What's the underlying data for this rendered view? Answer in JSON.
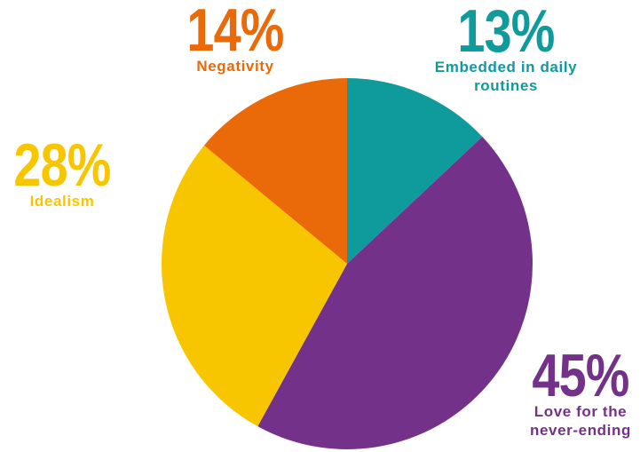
{
  "chart_data": {
    "type": "pie",
    "title": "",
    "slices": [
      {
        "label": "Embedded in daily routines",
        "label_lines": [
          "Embedded in daily",
          "routines"
        ],
        "value": 13,
        "display": "13%",
        "color": "#0f9b9b"
      },
      {
        "label": "Love for the never-ending",
        "label_lines": [
          "Love for the",
          "never-ending"
        ],
        "value": 45,
        "display": "45%",
        "color": "#74318a"
      },
      {
        "label": "Idealism",
        "label_lines": [
          "Idealism"
        ],
        "value": 28,
        "display": "28%",
        "color": "#f7c600"
      },
      {
        "label": "Negativity",
        "label_lines": [
          "Negativity"
        ],
        "value": 14,
        "display": "14%",
        "color": "#ea6a0a"
      }
    ],
    "start_angle": "12 o'clock",
    "direction": "clockwise",
    "legend": "none",
    "grid": false
  }
}
